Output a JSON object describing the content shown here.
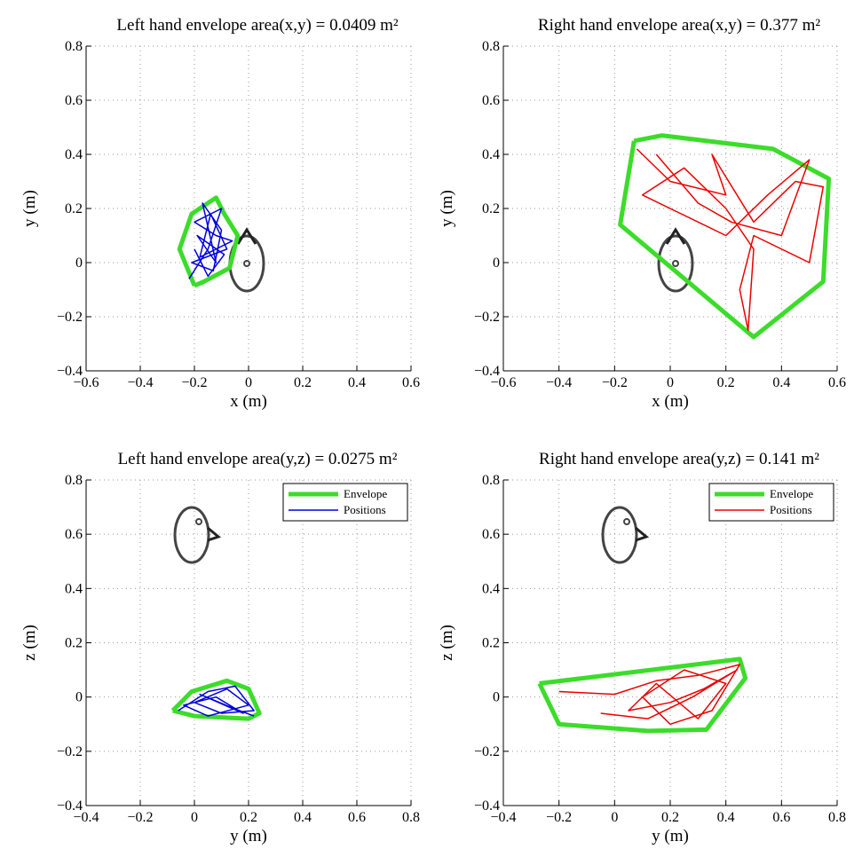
{
  "chart_data": [
    {
      "type": "line",
      "title": "Left hand envelope area(x,y) = 0.0409 m²",
      "xlabel": "x (m)",
      "ylabel": "y (m)",
      "xlim": [
        -0.6,
        0.6
      ],
      "ylim": [
        -0.4,
        0.8
      ],
      "xticks": [
        {
          "value": -0.6,
          "label": "−0.6"
        },
        {
          "value": -0.4,
          "label": "−0.4"
        },
        {
          "value": -0.2,
          "label": "−0.2"
        },
        0,
        0.2,
        0.4,
        0.6
      ],
      "yticks": [
        {
          "value": -0.4,
          "label": "−0.4"
        },
        {
          "value": -0.2,
          "label": "−0.2"
        },
        0,
        0.2,
        0.4,
        0.6,
        0.8
      ],
      "grid": true,
      "series": [
        {
          "color": "#3cdc2a",
          "x": [
            -0.2,
            -0.255,
            -0.21,
            -0.12,
            -0.09,
            -0.04,
            -0.07,
            -0.165,
            -0.2
          ],
          "values": [
            -0.085,
            0.05,
            0.18,
            0.24,
            0.18,
            0.1,
            -0.02,
            -0.07,
            -0.085
          ]
        },
        {
          "color": "#0000dd",
          "x": [
            -0.22,
            -0.15,
            -0.1,
            -0.2,
            -0.12,
            -0.06,
            -0.18,
            -0.14,
            -0.08,
            -0.21,
            -0.13,
            -0.1,
            -0.17,
            -0.12,
            -0.19,
            -0.09,
            -0.15,
            -0.2
          ],
          "values": [
            -0.06,
            0.05,
            0.2,
            0.15,
            0.1,
            0.08,
            0.02,
            0.18,
            0.05,
            0.0,
            -0.03,
            0.12,
            0.22,
            0.0,
            0.1,
            0.03,
            -0.05,
            0.05
          ]
        }
      ]
    },
    {
      "type": "line",
      "title": "Right hand envelope area(x,y) = 0.377 m²",
      "xlabel": "x (m)",
      "ylabel": "y (m)",
      "xlim": [
        -0.6,
        0.6
      ],
      "ylim": [
        -0.4,
        0.8
      ],
      "xticks": [
        {
          "value": -0.6,
          "label": "−0.6"
        },
        {
          "value": -0.4,
          "label": "−0.4"
        },
        {
          "value": -0.2,
          "label": "−0.2"
        },
        0,
        0.2,
        0.4,
        0.6
      ],
      "yticks": [
        {
          "value": -0.4,
          "label": "−0.4"
        },
        {
          "value": -0.2,
          "label": "−0.2"
        },
        0,
        0.2,
        0.4,
        0.6,
        0.8
      ],
      "grid": true,
      "series": [
        {
          "color": "#3cdc2a",
          "x": [
            -0.13,
            -0.03,
            0.37,
            0.57,
            0.55,
            0.3,
            -0.18,
            -0.13
          ],
          "values": [
            0.45,
            0.47,
            0.42,
            0.31,
            -0.07,
            -0.275,
            0.14,
            0.45
          ]
        },
        {
          "color": "#ee0000",
          "x": [
            -0.12,
            0.0,
            0.2,
            0.15,
            0.3,
            0.45,
            0.55,
            0.5,
            0.3,
            0.25,
            0.28,
            0.3,
            0.2,
            0.05,
            -0.1,
            0.2,
            0.35,
            0.5,
            0.4,
            0.22,
            0.1,
            -0.05
          ],
          "values": [
            0.42,
            0.3,
            0.25,
            0.4,
            0.15,
            0.3,
            0.28,
            0.0,
            0.1,
            -0.1,
            -0.25,
            0.05,
            0.2,
            0.35,
            0.25,
            0.1,
            0.25,
            0.38,
            0.1,
            0.15,
            0.22,
            0.4
          ]
        }
      ]
    },
    {
      "type": "line",
      "title": "Left hand envelope area(y,z) = 0.0275 m²",
      "xlabel": "y (m)",
      "ylabel": "z (m)",
      "xlim": [
        -0.4,
        0.8
      ],
      "ylim": [
        -0.4,
        0.8
      ],
      "xticks": [
        {
          "value": -0.4,
          "label": "−0.4"
        },
        {
          "value": -0.2,
          "label": "−0.2"
        },
        0,
        0.2,
        0.4,
        0.6,
        0.8
      ],
      "yticks": [
        {
          "value": -0.4,
          "label": "−0.4"
        },
        {
          "value": -0.2,
          "label": "−0.2"
        },
        0,
        0.2,
        0.4,
        0.6,
        0.8
      ],
      "grid": true,
      "legend": "upper right",
      "series": [
        {
          "name": "Envelope",
          "color": "#3cdc2a",
          "x": [
            -0.08,
            -0.01,
            0.12,
            0.2,
            0.24,
            0.2,
            0.0,
            -0.08
          ],
          "values": [
            -0.05,
            0.02,
            0.06,
            0.03,
            -0.06,
            -0.08,
            -0.07,
            -0.05
          ]
        },
        {
          "name": "Positions",
          "color": "#0000dd",
          "x": [
            -0.06,
            0.05,
            0.15,
            0.22,
            0.1,
            0.0,
            0.12,
            0.2,
            0.05,
            -0.04,
            0.08,
            0.18,
            0.02,
            0.14,
            0.22
          ],
          "values": [
            -0.05,
            0.02,
            0.04,
            -0.05,
            -0.06,
            -0.02,
            0.03,
            -0.03,
            -0.07,
            -0.03,
            0.0,
            -0.06,
            0.01,
            -0.04,
            -0.07
          ]
        }
      ]
    },
    {
      "type": "line",
      "title": "Right hand envelope area(y,z) = 0.141 m²",
      "xlabel": "y (m)",
      "ylabel": "z (m)",
      "xlim": [
        -0.4,
        0.8
      ],
      "ylim": [
        -0.4,
        0.8
      ],
      "xticks": [
        {
          "value": -0.4,
          "label": "−0.4"
        },
        {
          "value": -0.2,
          "label": "−0.2"
        },
        0,
        0.2,
        0.4,
        0.6,
        0.8
      ],
      "yticks": [
        {
          "value": -0.4,
          "label": "−0.4"
        },
        {
          "value": -0.2,
          "label": "−0.2"
        },
        0,
        0.2,
        0.4,
        0.6,
        0.8
      ],
      "grid": true,
      "legend": "upper right",
      "series": [
        {
          "name": "Envelope",
          "color": "#3cdc2a",
          "x": [
            -0.27,
            0.45,
            0.47,
            0.33,
            0.12,
            -0.2,
            -0.27
          ],
          "values": [
            0.05,
            0.14,
            0.07,
            -0.12,
            -0.125,
            -0.1,
            0.05
          ]
        },
        {
          "name": "Positions",
          "color": "#ee0000",
          "x": [
            -0.2,
            0.0,
            0.15,
            0.3,
            0.45,
            0.35,
            0.2,
            0.1,
            0.25,
            0.4,
            0.3,
            0.15,
            0.05,
            0.2,
            0.32,
            0.44,
            0.28,
            0.12,
            -0.05
          ],
          "values": [
            0.02,
            0.01,
            0.06,
            0.08,
            0.12,
            -0.05,
            -0.1,
            0.0,
            0.1,
            0.05,
            -0.08,
            0.05,
            -0.05,
            -0.02,
            0.03,
            0.1,
            0.0,
            -0.08,
            -0.06
          ]
        }
      ]
    }
  ]
}
